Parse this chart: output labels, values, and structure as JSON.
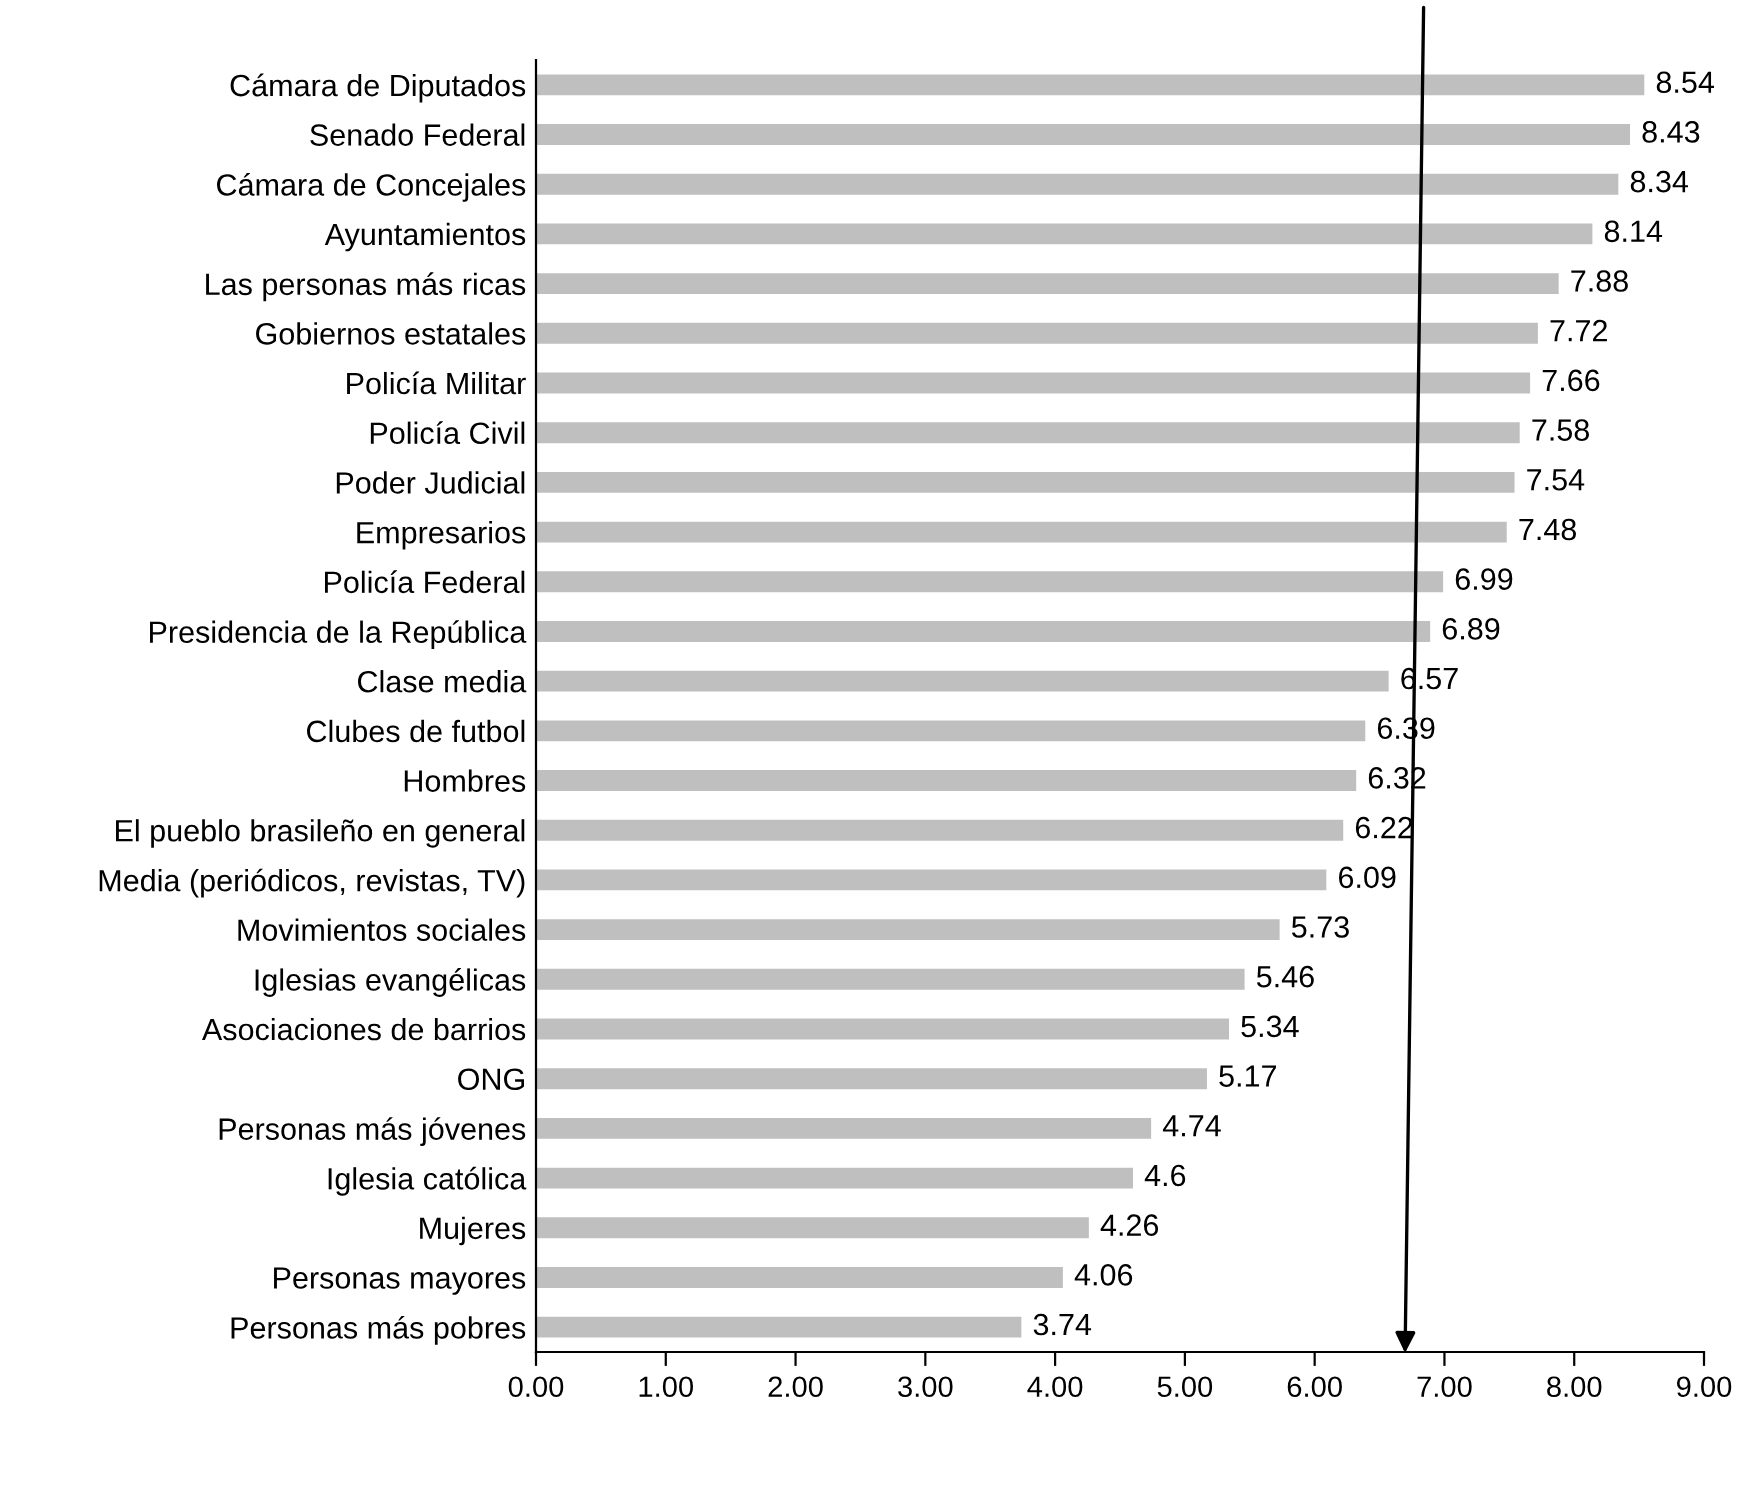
{
  "chart_data": {
    "type": "bar",
    "orientation": "horizontal",
    "categories": [
      "Cámara de Diputados",
      "Senado Federal",
      "Cámara de Concejales",
      "Ayuntamientos",
      "Las personas más ricas",
      "Gobiernos estatales",
      "Policía Militar",
      "Policía Civil",
      "Poder Judicial",
      "Empresarios",
      "Policía Federal",
      "Presidencia de la República",
      "Clase media",
      "Clubes de futbol",
      "Hombres",
      "El pueblo brasileño en general",
      "Media (periódicos, revistas, TV)",
      "Movimientos sociales",
      "Iglesias evangélicas",
      "Asociaciones de barrios",
      "ONG",
      "Personas más jóvenes",
      "Iglesia católica",
      "Mujeres",
      "Personas mayores",
      "Personas más pobres"
    ],
    "values": [
      8.54,
      8.43,
      8.34,
      8.14,
      7.88,
      7.72,
      7.66,
      7.58,
      7.54,
      7.48,
      6.99,
      6.89,
      6.57,
      6.39,
      6.32,
      6.22,
      6.09,
      5.73,
      5.46,
      5.34,
      5.17,
      4.74,
      4.6,
      4.26,
      4.06,
      3.74
    ],
    "color": "#bfbfbf",
    "data_labels": true,
    "grid": false,
    "xlim": [
      0,
      9
    ],
    "xticks": [
      {
        "value": 0,
        "label": "0.00"
      },
      {
        "value": 1,
        "label": "1.00"
      },
      {
        "value": 2,
        "label": "2.00"
      },
      {
        "value": 3,
        "label": "3.00"
      },
      {
        "value": 4,
        "label": "4.00"
      },
      {
        "value": 5,
        "label": "5.00"
      },
      {
        "value": 6,
        "label": "6.00"
      },
      {
        "value": 7,
        "label": "7.00"
      },
      {
        "value": 8,
        "label": "8.00"
      },
      {
        "value": 9,
        "label": "9.00"
      }
    ]
  }
}
